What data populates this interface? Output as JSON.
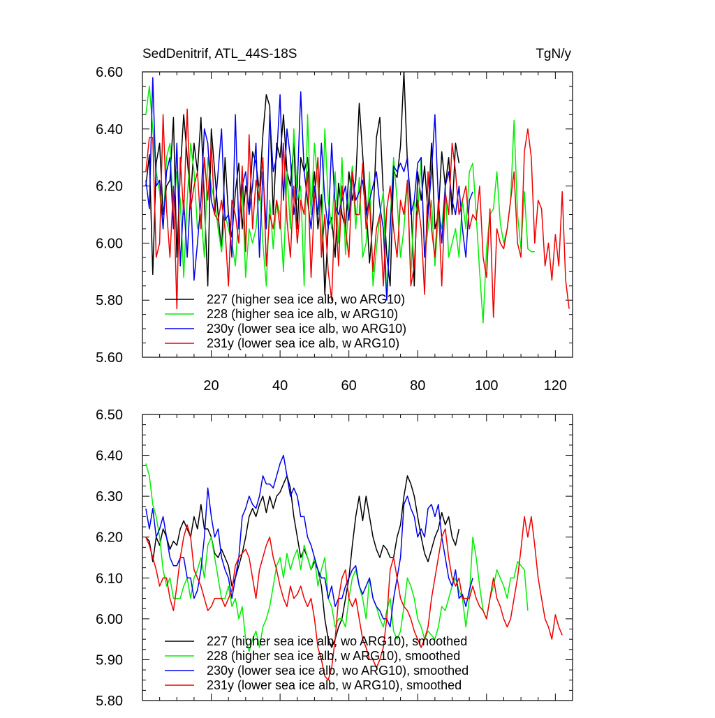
{
  "title_left": "SedDenitrif, ATL_44S-18S",
  "title_right": "TgN/y",
  "chart_data": [
    {
      "type": "line",
      "name": "raw",
      "xlim": [
        0,
        125
      ],
      "ylim": [
        5.6,
        6.6
      ],
      "yticks": [
        "5.60",
        "5.80",
        "6.00",
        "6.20",
        "6.40",
        "6.60"
      ],
      "xticks": [
        "20",
        "40",
        "60",
        "80",
        "100",
        "120"
      ],
      "legend": [
        "227 (higher sea ice alb, wo ARG10)",
        "228 (higher sea ice alb, w ARG10)",
        "230y (lower sea ice alb, wo ARG10)",
        "231y (lower sea ice alb, w ARG10)"
      ],
      "series": [
        {
          "name": "227",
          "color": "#000000",
          "values": [
            6.2,
            6.31,
            5.89,
            6.28,
            6.35,
            6.1,
            6.2,
            6.22,
            6.44,
            5.95,
            6.25,
            6.45,
            6.3,
            6.15,
            6.35,
            6.25,
            6.44,
            6.15,
            5.85,
            6.4,
            6.25,
            6.1,
            5.97,
            6.3,
            6.1,
            6.02,
            6.18,
            6.28,
            6.05,
            6.2,
            6.12,
            6.32,
            6.28,
            6.18,
            6.38,
            6.52,
            6.48,
            6.1,
            6.35,
            6.3,
            6.45,
            6.25,
            6.2,
            6.35,
            6.05,
            6.3,
            6.25,
            6.3,
            6.12,
            6.25,
            6.05,
            6.17,
            5.82,
            6.06,
            6.09,
            5.95,
            6.21,
            6.1,
            6.05,
            6.25,
            6.15,
            6.22,
            6.49,
            6.31,
            6.14,
            5.93,
            6.08,
            6.37,
            6.44,
            6.17,
            5.96,
            5.85,
            6.25,
            6.23,
            6.34,
            6.6,
            6.28,
            6.15,
            5.85,
            6.25,
            6.15,
            6.27,
            6.1,
            6.35,
            6.05,
            6.1,
            6.32,
            6.2,
            6.3,
            6.1,
            6.35,
            6.28
          ]
        },
        {
          "name": "228",
          "color": "#00ee00",
          "values": [
            6.45,
            6.55,
            6.4,
            6.25,
            6.18,
            6.05,
            6.3,
            6.35,
            6.1,
            6.25,
            6.15,
            5.88,
            6.15,
            6.35,
            6.25,
            6.05,
            6.1,
            5.95,
            6.3,
            6.2,
            6.15,
            6.05,
            5.97,
            6.1,
            6.05,
            6.0,
            5.92,
            6.1,
            6.2,
            5.88,
            6.05,
            6.0,
            6.05,
            6.2,
            6.0,
            5.85,
            6.15,
            5.98,
            6.15,
            6.1,
            5.9,
            6.25,
            6.05,
            6.4,
            6.15,
            6.2,
            5.85,
            6.45,
            6.1,
            6.35,
            6.2,
            5.98,
            6.4,
            6.15,
            6.05,
            6.25,
            6.0,
            6.3,
            5.96,
            6.15,
            6.27,
            6.05,
            6.23,
            5.95,
            6.0,
            6.25,
            5.85,
            5.98,
            6.1,
            6.18,
            5.8,
            6.08,
            6.3,
            6.15,
            5.95,
            6.05,
            6.22,
            5.88,
            6.15,
            6.1,
            6.3,
            5.95,
            6.05,
            6.15,
            5.92,
            6.1,
            6.05,
            6.2,
            5.95,
            6.0,
            6.05,
            5.95,
            6.15,
            6.05,
            6.25,
            6.28,
            6.1,
            5.9,
            5.72,
            5.98,
            6.1,
            6.12,
            6.25,
            6.07,
            6.0,
            6.05,
            6.15,
            6.43,
            6.1,
            5.98,
            6.18,
            5.98,
            5.97,
            5.97
          ]
        },
        {
          "name": "230y",
          "color": "#0000ee",
          "values": [
            6.22,
            6.12,
            6.58,
            6.2,
            6.22,
            6.05,
            6.25,
            6.3,
            6.05,
            6.35,
            5.92,
            6.15,
            5.95,
            6.18,
            5.87,
            6.0,
            6.15,
            6.4,
            6.35,
            6.15,
            6.1,
            6.25,
            6.4,
            6.08,
            6.1,
            5.95,
            6.45,
            6.05,
            6.2,
            6.25,
            6.1,
            6.2,
            6.35,
            5.95,
            6.25,
            6.05,
            6.45,
            6.25,
            6.3,
            6.52,
            6.15,
            6.4,
            6.3,
            6.1,
            6.2,
            6.53,
            6.25,
            6.15,
            6.05,
            6.2,
            6.1,
            6.35,
            6.15,
            6.05,
            6.35,
            6.13,
            6.1,
            6.15,
            6.2,
            6.08,
            6.25,
            6.15,
            6.18,
            6.22,
            6.1,
            6.15,
            6.2,
            6.25,
            6.13,
            6.05,
            5.8,
            6.05,
            6.27,
            6.25,
            6.28,
            6.25,
            6.3,
            6.1,
            6.15,
            6.28,
            6.3,
            5.95,
            6.1,
            6.25,
            6.45,
            6.15,
            6.0,
            6.2,
            6.25,
            6.15,
            6.1,
            6.2,
            6.05,
            5.95,
            6.15,
            6.18
          ]
        },
        {
          "name": "231y",
          "color": "#ee0000",
          "values": [
            6.25,
            6.37,
            6.37,
            5.95,
            6.0,
            6.45,
            6.12,
            5.95,
            6.2,
            5.77,
            6.3,
            6.1,
            6.47,
            6.12,
            6.2,
            6.25,
            6.05,
            6.3,
            6.15,
            6.35,
            6.1,
            6.08,
            6.15,
            6.05,
            5.85,
            6.15,
            6.1,
            6.0,
            6.27,
            5.97,
            6.38,
            6.05,
            6.22,
            6.15,
            6.3,
            5.92,
            6.1,
            6.05,
            6.15,
            6.05,
            6.35,
            6.08,
            5.95,
            6.2,
            6.0,
            6.15,
            6.1,
            6.25,
            5.88,
            6.15,
            6.3,
            5.95,
            6.1,
            5.9,
            5.8,
            6.15,
            5.92,
            6.2,
            6.05,
            5.95,
            6.25,
            6.1,
            6.1,
            6.28,
            6.05,
            6.15,
            5.9,
            6.05,
            6.1,
            5.85,
            6.12,
            6.2,
            6.05,
            5.95,
            6.15,
            6.1,
            6.22,
            5.85,
            5.92,
            6.15,
            6.05,
            5.82,
            6.25,
            6.05,
            5.95,
            6.15,
            5.85,
            6.18,
            6.1,
            6.35,
            6.25,
            6.1,
            6.15,
            6.2,
            6.05,
            6.1,
            6.08,
            6.2,
            5.95,
            5.88,
            6.12,
            5.74,
            6.05,
            6.0,
            5.98,
            6.05,
            6.15,
            6.25,
            6.0,
            5.95,
            6.32,
            6.4,
            6.3,
            6.0,
            6.15,
            6.12,
            5.92,
            6.0,
            5.87,
            6.03,
            5.92,
            6.18,
            5.87,
            5.77
          ]
        }
      ]
    },
    {
      "type": "line",
      "name": "smoothed",
      "xlim": [
        0,
        125
      ],
      "ylim": [
        5.8,
        6.5
      ],
      "yticks": [
        "5.80",
        "5.90",
        "6.00",
        "6.10",
        "6.20",
        "6.30",
        "6.40",
        "6.50"
      ],
      "legend": [
        "227 (higher sea ice alb, wo ARG10), smoothed",
        "228 (higher sea ice alb, w ARG10), smoothed",
        "230y (lower sea ice alb, wo ARG10), smoothed",
        "231y (lower sea ice alb, w ARG10), smoothed"
      ],
      "series": [
        {
          "name": "227",
          "color": "#000000",
          "values": [
            6.2,
            6.19,
            6.14,
            6.2,
            6.18,
            6.22,
            6.2,
            6.17,
            6.19,
            6.18,
            6.22,
            6.24,
            6.22,
            6.2,
            6.25,
            6.22,
            6.28,
            6.22,
            6.22,
            6.2,
            6.16,
            6.15,
            6.17,
            6.15,
            6.13,
            6.08,
            6.1,
            6.13,
            6.16,
            6.2,
            6.25,
            6.27,
            6.25,
            6.28,
            6.3,
            6.26,
            6.3,
            6.27,
            6.3,
            6.31,
            6.33,
            6.35,
            6.32,
            6.25,
            6.2,
            6.15,
            6.17,
            6.15,
            6.12,
            6.14,
            6.12,
            6.08,
            6.0,
            5.95,
            5.93,
            5.95,
            5.98,
            6.0,
            6.05,
            6.1,
            6.18,
            6.25,
            6.3,
            6.24,
            6.3,
            6.25,
            6.2,
            6.17,
            6.15,
            6.18,
            6.17,
            6.15,
            6.15,
            6.2,
            6.23,
            6.3,
            6.35,
            6.33,
            6.3,
            6.25,
            6.2,
            6.16,
            6.14,
            6.17,
            6.2,
            6.22,
            6.26,
            6.23,
            6.25,
            6.2,
            6.18,
            6.22
          ]
        },
        {
          "name": "228",
          "color": "#00ee00",
          "values": [
            6.38,
            6.35,
            6.28,
            6.25,
            6.2,
            6.12,
            6.08,
            6.1,
            6.05,
            6.05,
            6.05,
            6.08,
            6.1,
            6.05,
            6.1,
            6.12,
            6.15,
            6.1,
            6.18,
            6.2,
            6.15,
            6.1,
            6.05,
            6.05,
            6.08,
            6.03,
            6.05,
            6.0,
            6.03,
            5.95,
            5.92,
            5.95,
            5.97,
            5.93,
            5.98,
            6.0,
            6.03,
            6.08,
            6.13,
            6.15,
            6.1,
            6.16,
            6.12,
            6.15,
            6.17,
            6.12,
            6.18,
            6.15,
            6.12,
            6.15,
            6.08,
            6.12,
            6.15,
            6.05,
            6.03,
            5.98,
            6.0,
            6.0,
            5.98,
            6.05,
            6.1,
            6.12,
            6.08,
            6.05,
            6.0,
            6.1,
            6.05,
            6.03,
            6.0,
            5.98,
            6.02,
            6.05,
            5.97,
            5.95,
            5.97,
            6.03,
            6.1,
            6.08,
            6.05,
            6.0,
            5.98,
            5.95,
            5.97,
            5.96,
            5.95,
            5.98,
            6.03,
            6.02,
            6.05,
            6.08,
            6.1,
            6.07,
            6.05,
            5.98,
            6.05,
            6.2,
            6.15,
            6.08,
            6.02,
            6.0,
            6.05,
            6.08,
            6.12,
            6.1,
            6.08,
            6.05,
            6.1,
            6.1,
            6.14,
            6.13,
            6.12,
            6.02
          ]
        },
        {
          "name": "230y",
          "color": "#0000ee",
          "values": [
            6.27,
            6.22,
            6.27,
            6.2,
            6.22,
            6.25,
            6.2,
            6.15,
            6.13,
            6.13,
            6.15,
            6.15,
            6.1,
            6.1,
            6.05,
            6.07,
            6.12,
            6.2,
            6.32,
            6.25,
            6.2,
            6.22,
            6.15,
            6.12,
            6.1,
            6.05,
            6.1,
            6.15,
            6.25,
            6.27,
            6.3,
            6.28,
            6.27,
            6.3,
            6.35,
            6.33,
            6.33,
            6.32,
            6.35,
            6.38,
            6.4,
            6.35,
            6.3,
            6.32,
            6.3,
            6.25,
            6.25,
            6.2,
            6.18,
            6.15,
            6.12,
            6.1,
            6.1,
            6.05,
            6.08,
            6.03,
            6.05,
            6.05,
            6.08,
            6.1,
            6.12,
            6.13,
            6.08,
            6.06,
            6.08,
            6.1,
            6.05,
            6.03,
            6.02,
            6.0,
            6.0,
            5.98,
            6.05,
            6.1,
            6.15,
            6.28,
            6.3,
            6.27,
            6.25,
            6.2,
            6.22,
            6.2,
            6.27,
            6.28,
            6.25,
            6.28,
            6.2,
            6.15,
            6.1,
            6.08,
            6.12,
            6.05,
            6.06,
            6.03,
            6.07,
            6.1
          ]
        },
        {
          "name": "231y",
          "color": "#ee0000",
          "values": [
            6.2,
            6.18,
            6.15,
            6.12,
            6.08,
            6.1,
            6.1,
            6.05,
            6.02,
            6.08,
            6.15,
            6.2,
            6.23,
            6.2,
            6.12,
            6.1,
            6.08,
            6.05,
            6.02,
            6.03,
            6.05,
            6.05,
            6.05,
            6.03,
            6.05,
            6.07,
            6.13,
            6.15,
            6.16,
            6.17,
            6.15,
            6.1,
            6.05,
            6.12,
            6.15,
            6.18,
            6.2,
            6.15,
            6.12,
            6.08,
            6.05,
            6.03,
            6.08,
            6.05,
            6.06,
            6.08,
            6.05,
            6.03,
            6.05,
            6.0,
            5.93,
            5.9,
            5.86,
            5.85,
            5.88,
            5.95,
            6.05,
            6.1,
            6.12,
            6.05,
            6.03,
            6.05,
            6.0,
            5.95,
            5.93,
            5.9,
            5.9,
            5.88,
            5.9,
            5.93,
            6.0,
            6.12,
            6.15,
            6.1,
            6.05,
            6.03,
            6.02,
            6.0,
            5.97,
            5.95,
            5.93,
            5.95,
            5.98,
            6.05,
            6.1,
            6.15,
            6.2,
            6.22,
            6.15,
            6.1,
            6.08,
            6.1,
            6.05,
            6.05,
            6.05,
            6.08,
            6.05,
            6.03,
            6.02,
            6.0,
            6.05,
            6.1,
            6.05,
            6.03,
            6.0,
            5.98,
            6.0,
            6.05,
            6.1,
            6.17,
            6.25,
            6.2,
            6.25,
            6.18,
            6.1,
            6.05,
            6.0,
            5.98,
            5.95,
            6.01,
            5.98,
            5.96
          ]
        }
      ]
    }
  ]
}
